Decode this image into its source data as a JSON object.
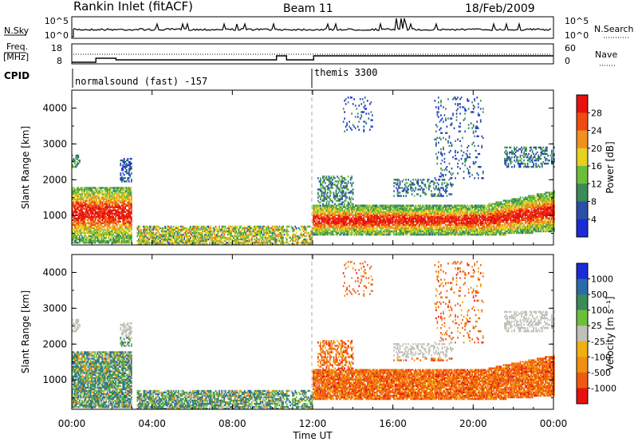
{
  "header": {
    "station": "Rankin Inlet (fitACF)",
    "beam": "Beam 11",
    "date": "18/Feb/2009"
  },
  "top_panels": {
    "nsky_label": "N.Sky",
    "nsky_ticks": [
      "10^5",
      "10^0"
    ],
    "nsearch_label": "N.Search",
    "nsearch_ticks": [
      "10^5",
      "10^0"
    ],
    "freq_label": "Freq.",
    "freq_unit": "[MHz]",
    "freq_ticks": [
      "18",
      "8"
    ],
    "nave_label": "Nave",
    "nave_ticks": [
      "60",
      "0"
    ],
    "cpid_label": "CPID",
    "cpid_segments": [
      {
        "start_hour": 0,
        "end_hour": 12,
        "label": "normalsound (fast) -157"
      },
      {
        "start_hour": 12,
        "end_hour": 24,
        "label": "themis 3300"
      }
    ]
  },
  "colors": {
    "power": [
      "#1a2bd8",
      "#2a4fa8",
      "#3a8a5a",
      "#6bbf3a",
      "#e8d020",
      "#f09020",
      "#f04a10",
      "#e81010"
    ],
    "velocity": [
      "#e81010",
      "#f05a10",
      "#f09010",
      "#f0b010",
      "#c0c0b8",
      "#6bc03a",
      "#3a8a5a",
      "#2a6aa8",
      "#1a2bd8"
    ]
  },
  "chart_data": [
    {
      "type": "heatmap",
      "name": "power-panel",
      "ylabel": "Slant Range [km]",
      "ylim": [
        180,
        4500
      ],
      "xlim_hours": [
        0,
        24
      ],
      "y_ticks": [
        "1000",
        "2000",
        "3000",
        "4000"
      ],
      "colorbar_label": "Power [dB]",
      "colorbar_ticks": [
        "28",
        "24",
        "20",
        "16",
        "12",
        "8",
        "4"
      ]
    },
    {
      "type": "heatmap",
      "name": "velocity-panel",
      "ylabel": "Slant Range [km]",
      "ylim": [
        180,
        4500
      ],
      "xlim_hours": [
        0,
        24
      ],
      "y_ticks": [
        "1000",
        "2000",
        "3000",
        "4000"
      ],
      "colorbar_label": "Velocity [m s⁻¹]",
      "colorbar_ticks": [
        "1000",
        "500",
        "100",
        "25",
        "-25",
        "-100",
        "-500",
        "-1000"
      ]
    }
  ],
  "x_axis": {
    "ticks": [
      "00:00",
      "04:00",
      "08:00",
      "12:00",
      "16:00",
      "20:00",
      "00:00"
    ],
    "label": "Time UT"
  }
}
